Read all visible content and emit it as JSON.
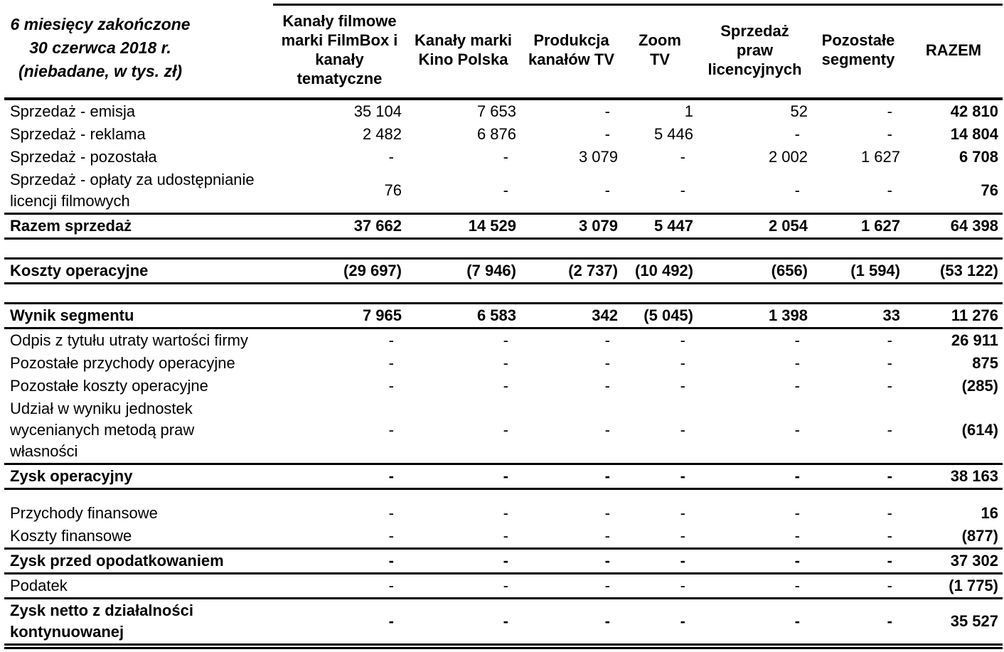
{
  "table": {
    "corner_header_lines": [
      "6 miesięcy zakończone",
      "30 czerwca 2018 r.",
      "(niebadane, w tys. zł)"
    ],
    "column_headers": [
      {
        "lines": [
          "Kanały filmowe",
          "marki FilmBox i",
          "kanały",
          "tematyczne"
        ]
      },
      {
        "lines": [
          "Kanały marki",
          "Kino Polska"
        ]
      },
      {
        "lines": [
          "Produkcja",
          "kanałów TV"
        ]
      },
      {
        "lines": [
          "Zoom",
          "TV"
        ]
      },
      {
        "lines": [
          "Sprzedaż",
          "praw",
          "licencyjnych"
        ]
      },
      {
        "lines": [
          "Pozostałe",
          "segmenty"
        ]
      },
      {
        "lines": [
          "RAZEM"
        ]
      }
    ],
    "rows": [
      {
        "kind": "item",
        "label": "Sprzedaż - emisja",
        "values": [
          "35 104",
          "7 653",
          "-",
          "1",
          "52",
          "-",
          "42 810"
        ]
      },
      {
        "kind": "item",
        "label": "Sprzedaż - reklama",
        "values": [
          "2 482",
          "6 876",
          "-",
          "5 446",
          "-",
          "-",
          "14 804"
        ]
      },
      {
        "kind": "item",
        "label": "Sprzedaż - pozostała",
        "values": [
          "-",
          "-",
          "3 079",
          "-",
          "2 002",
          "1 627",
          "6 708"
        ]
      },
      {
        "kind": "item",
        "label": [
          "Sprzedaż - opłaty za udostępnianie",
          "licencji filmowych"
        ],
        "values": [
          "76",
          "-",
          "-",
          "-",
          "-",
          "-",
          "76"
        ]
      },
      {
        "kind": "total",
        "label": "Razem sprzedaż",
        "values": [
          "37 662",
          "14 529",
          "3 079",
          "5 447",
          "2 054",
          "1 627",
          "64 398"
        ]
      },
      {
        "kind": "spacer"
      },
      {
        "kind": "total",
        "label": "Koszty operacyjne",
        "values": [
          "(29 697)",
          "(7 946)",
          "(2 737)",
          "(10 492)",
          "(656)",
          "(1 594)",
          "(53 122)"
        ]
      },
      {
        "kind": "spacer"
      },
      {
        "kind": "total",
        "label": "Wynik segmentu",
        "values": [
          "7 965",
          "6 583",
          "342",
          "(5 045)",
          "1 398",
          "33",
          "11 276"
        ]
      },
      {
        "kind": "item",
        "label": "Odpis z tytułu utraty wartości firmy",
        "values": [
          "-",
          "-",
          "-",
          "-",
          "-",
          "-",
          "26 911"
        ]
      },
      {
        "kind": "item",
        "label": "Pozostałe przychody operacyjne",
        "values": [
          "-",
          "-",
          "-",
          "-",
          "-",
          "-",
          "875"
        ]
      },
      {
        "kind": "item",
        "label": "Pozostałe koszty operacyjne",
        "values": [
          "-",
          "-",
          "-",
          "-",
          "-",
          "-",
          "(285)"
        ]
      },
      {
        "kind": "item",
        "label": [
          "Udział w wyniku jednostek",
          "wycenianych metodą praw",
          "własności"
        ],
        "values": [
          "-",
          "-",
          "-",
          "-",
          "-",
          "-",
          "(614)"
        ]
      },
      {
        "kind": "total",
        "label": "Zysk operacyjny",
        "values": [
          "-",
          "-",
          "-",
          "-",
          "-",
          "-",
          "38 163"
        ]
      },
      {
        "kind": "spacer-sm"
      },
      {
        "kind": "item",
        "label": "Przychody finansowe",
        "values": [
          "-",
          "-",
          "-",
          "-",
          "-",
          "-",
          "16"
        ]
      },
      {
        "kind": "item",
        "label": "Koszty finansowe",
        "values": [
          "-",
          "-",
          "-",
          "-",
          "-",
          "-",
          "(877)"
        ]
      },
      {
        "kind": "total",
        "label": "Zysk przed opodatkowaniem",
        "values": [
          "-",
          "-",
          "-",
          "-",
          "-",
          "-",
          "37 302"
        ]
      },
      {
        "kind": "item-ruled",
        "label": "Podatek",
        "values": [
          "-",
          "-",
          "-",
          "-",
          "-",
          "-",
          "(1 775)"
        ]
      },
      {
        "kind": "grand-total",
        "label": [
          "Zysk netto z działalności",
          "kontynuowanej"
        ],
        "values": [
          "-",
          "-",
          "-",
          "-",
          "-",
          "-",
          "35 527"
        ]
      }
    ]
  }
}
